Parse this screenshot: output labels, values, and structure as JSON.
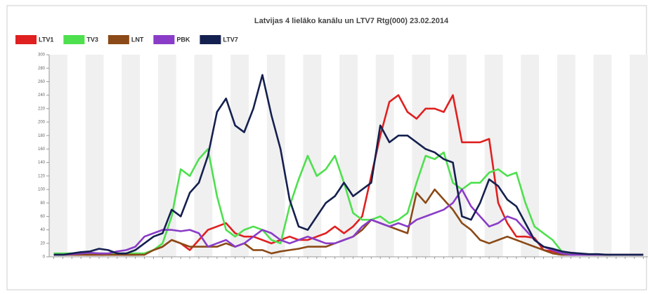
{
  "chart_data": {
    "type": "line",
    "title": "Latvijas 4 lielāko kanālu un LTV7 Rtg(000) 23.02.2014",
    "categories": [
      null,
      null,
      null,
      null,
      null,
      null,
      null,
      null,
      null,
      null,
      null,
      null,
      null,
      null,
      null,
      null,
      null,
      null,
      null,
      null,
      null,
      null,
      null,
      null,
      null,
      null,
      null,
      null,
      null,
      null,
      null,
      null,
      null,
      null,
      null,
      null,
      null,
      null,
      null,
      null,
      null,
      null,
      null,
      null,
      null,
      null,
      null,
      null,
      null,
      null,
      null,
      null,
      null,
      null,
      null,
      null,
      null,
      null,
      null,
      null,
      null,
      null,
      null,
      null,
      null,
      null
    ],
    "ylim": [
      0,
      300
    ],
    "yticks": [
      0,
      20,
      40,
      60,
      80,
      100,
      120,
      140,
      160,
      180,
      200,
      220,
      240,
      260,
      280,
      300
    ],
    "series": [
      {
        "name": "LTV1",
        "color": "#e02020",
        "values": [
          3,
          3,
          3,
          3,
          3,
          3,
          3,
          3,
          3,
          3,
          5,
          10,
          15,
          25,
          20,
          10,
          25,
          40,
          45,
          50,
          35,
          30,
          30,
          25,
          20,
          25,
          30,
          25,
          25,
          30,
          35,
          45,
          35,
          45,
          60,
          120,
          180,
          230,
          240,
          215,
          205,
          220,
          220,
          215,
          240,
          170,
          170,
          170,
          175,
          80,
          50,
          30,
          30,
          28,
          10,
          8,
          5,
          3,
          3,
          3,
          3,
          3,
          3,
          3,
          3,
          3
        ]
      },
      {
        "name": "TV3",
        "color": "#4ee04e",
        "values": [
          5,
          5,
          5,
          5,
          5,
          5,
          5,
          5,
          5,
          5,
          5,
          10,
          20,
          60,
          130,
          120,
          145,
          160,
          90,
          40,
          30,
          40,
          45,
          40,
          25,
          20,
          75,
          115,
          150,
          120,
          130,
          150,
          110,
          65,
          55,
          55,
          60,
          50,
          55,
          65,
          110,
          150,
          145,
          155,
          110,
          100,
          110,
          110,
          125,
          130,
          120,
          125,
          80,
          45,
          35,
          25,
          8,
          5,
          4,
          3,
          3,
          3,
          3,
          3,
          3,
          3
        ]
      },
      {
        "name": "LNT",
        "color": "#8b4a17",
        "values": [
          3,
          3,
          3,
          3,
          3,
          3,
          3,
          3,
          3,
          3,
          3,
          10,
          15,
          25,
          20,
          15,
          15,
          15,
          15,
          20,
          15,
          20,
          10,
          10,
          5,
          8,
          10,
          12,
          15,
          15,
          15,
          20,
          25,
          30,
          40,
          55,
          50,
          45,
          40,
          35,
          95,
          80,
          100,
          85,
          70,
          50,
          40,
          25,
          20,
          25,
          30,
          25,
          20,
          15,
          10,
          5,
          3,
          3,
          3,
          3,
          3,
          3,
          3,
          3,
          3,
          3
        ]
      },
      {
        "name": "PBK",
        "color": "#8a3cc8",
        "values": [
          3,
          3,
          4,
          5,
          6,
          5,
          5,
          8,
          10,
          15,
          30,
          35,
          40,
          40,
          38,
          40,
          35,
          15,
          20,
          25,
          15,
          20,
          30,
          40,
          35,
          25,
          20,
          25,
          30,
          25,
          20,
          20,
          25,
          30,
          45,
          55,
          50,
          45,
          50,
          45,
          55,
          60,
          65,
          70,
          80,
          100,
          75,
          60,
          45,
          50,
          60,
          55,
          40,
          25,
          15,
          10,
          5,
          3,
          3,
          3,
          3,
          3,
          3,
          3,
          3,
          3
        ]
      },
      {
        "name": "LTV7",
        "color": "#14204f",
        "values": [
          3,
          3,
          5,
          7,
          8,
          12,
          10,
          5,
          5,
          10,
          20,
          30,
          35,
          70,
          60,
          95,
          110,
          150,
          215,
          235,
          195,
          185,
          220,
          270,
          210,
          160,
          85,
          45,
          40,
          60,
          80,
          90,
          110,
          90,
          100,
          110,
          195,
          170,
          180,
          180,
          170,
          160,
          155,
          145,
          140,
          60,
          55,
          80,
          115,
          105,
          85,
          75,
          50,
          25,
          15,
          12,
          8,
          6,
          5,
          4,
          4,
          3,
          3,
          3,
          3,
          3
        ]
      }
    ]
  }
}
